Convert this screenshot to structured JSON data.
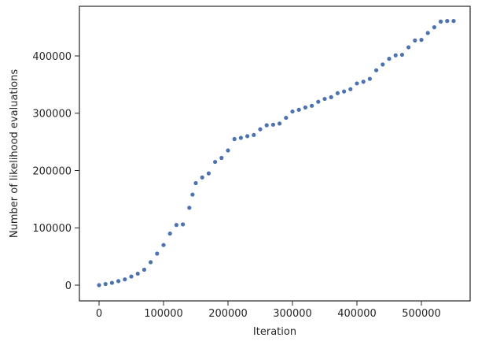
{
  "chart_data": {
    "type": "scatter",
    "xlabel": "Iteration",
    "ylabel": "Number of likelihood evaluations",
    "color": "#4c72b0",
    "x": [
      0,
      10000,
      20000,
      30000,
      40000,
      50000,
      60000,
      70000,
      80000,
      90000,
      100000,
      110000,
      120000,
      130000,
      140000,
      145000,
      150000,
      160000,
      170000,
      180000,
      190000,
      200000,
      210000,
      220000,
      230000,
      240000,
      250000,
      260000,
      270000,
      280000,
      290000,
      300000,
      310000,
      320000,
      330000,
      340000,
      350000,
      360000,
      370000,
      380000,
      390000,
      400000,
      410000,
      420000,
      430000,
      440000,
      450000,
      460000,
      470000,
      480000,
      490000,
      500000,
      510000,
      520000,
      530000,
      540000,
      550000
    ],
    "y": [
      0,
      2000,
      4000,
      7000,
      10000,
      15000,
      20000,
      27000,
      40000,
      55000,
      70000,
      90000,
      105000,
      106000,
      135000,
      158000,
      178000,
      188000,
      195000,
      215000,
      222000,
      235000,
      255000,
      257000,
      260000,
      262000,
      272000,
      279000,
      280000,
      282000,
      292000,
      303000,
      306000,
      310000,
      313000,
      320000,
      325000,
      328000,
      335000,
      338000,
      342000,
      352000,
      355000,
      360000,
      375000,
      385000,
      395000,
      401000,
      402000,
      415000,
      427000,
      428000,
      440000,
      450000,
      460000,
      461000,
      461000
    ],
    "xlim": [
      -30500,
      575600
    ],
    "ylim": [
      -27500,
      486600
    ],
    "xticks": [
      0,
      100000,
      200000,
      300000,
      400000,
      500000
    ],
    "yticks": [
      0,
      100000,
      200000,
      300000,
      400000
    ]
  }
}
